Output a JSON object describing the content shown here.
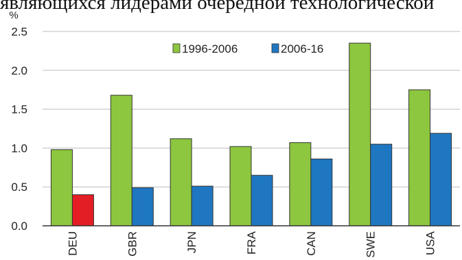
{
  "caption": "являющихся лидерами очередной технологической",
  "colors": {
    "series_1996": "#8dc63f",
    "series_2006": "#1f77c1",
    "highlight": "#e31e24",
    "grid": "#bdbdbd",
    "text": "#222222"
  },
  "chart_data": {
    "type": "bar",
    "ylabel": "%",
    "ylim": [
      0,
      2.5
    ],
    "yticks": [
      "0.0",
      "0.5",
      "1.0",
      "1.5",
      "2.0",
      "2.5"
    ],
    "grid": true,
    "legend_position": "top-right",
    "categories": [
      "DEU",
      "GBR",
      "JPN",
      "FRA",
      "CAN",
      "SWE",
      "USA"
    ],
    "series": [
      {
        "name": "1996-2006",
        "values": [
          0.98,
          1.68,
          1.12,
          1.02,
          1.07,
          2.35,
          1.75
        ]
      },
      {
        "name": "2006-16",
        "values": [
          0.4,
          0.49,
          0.51,
          0.65,
          0.86,
          1.05,
          1.19
        ]
      }
    ],
    "highlighted": {
      "series_index": 1,
      "category_index": 0
    }
  }
}
